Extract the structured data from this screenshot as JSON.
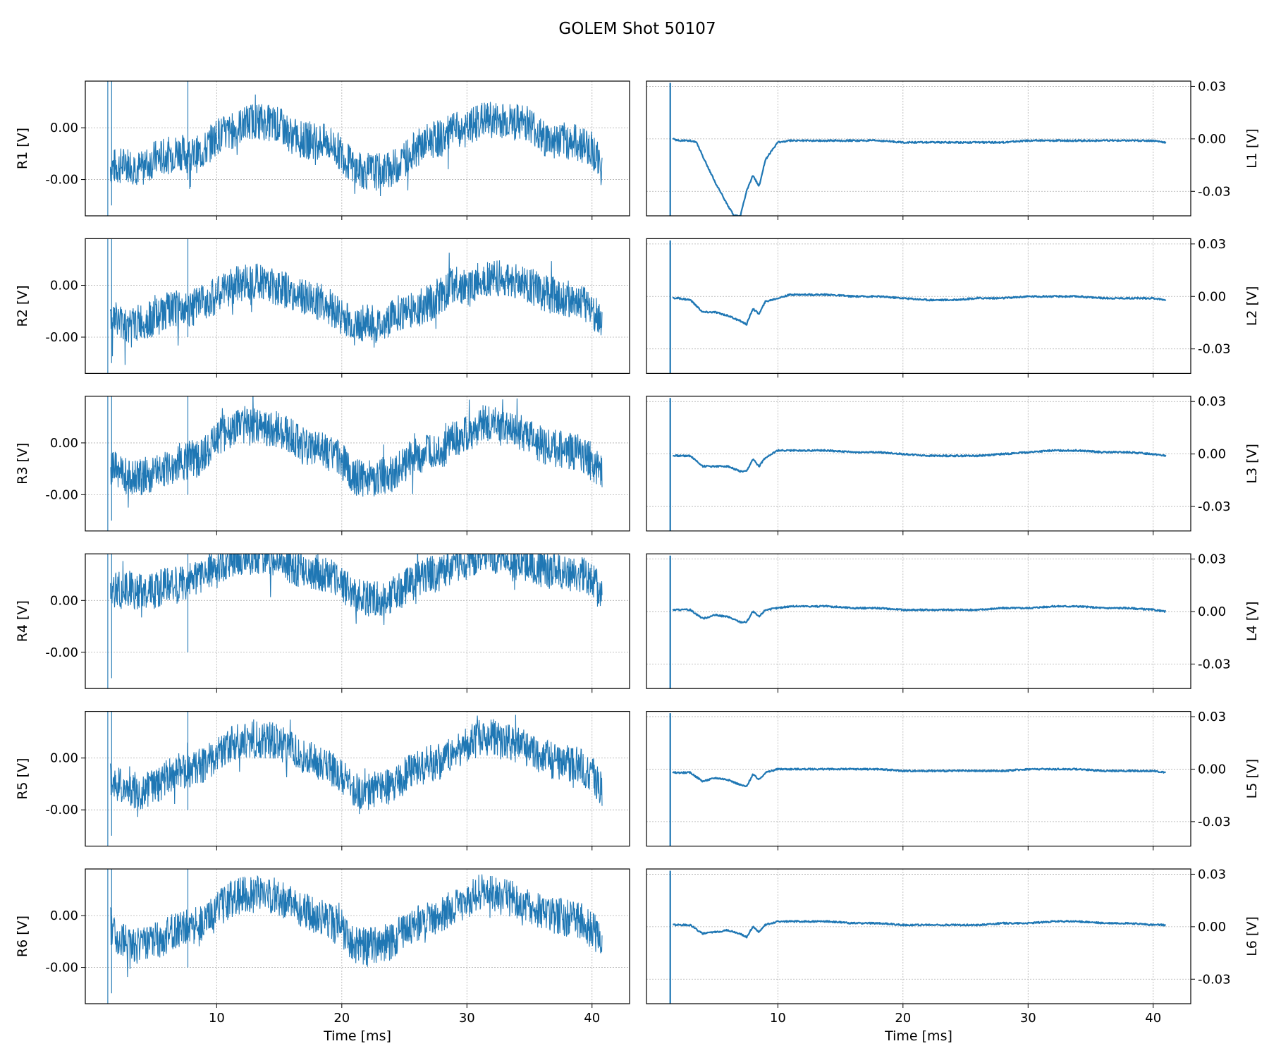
{
  "figure": {
    "title": "GOLEM Shot 50107",
    "line_color": "#1f77b4",
    "grid_color": "#b0b0b0"
  },
  "chart_data": {
    "type": "line",
    "grid": true,
    "xlabel": "Time [ms]",
    "xlim": [
      -0.5,
      43
    ],
    "x_ticks": [
      10,
      20,
      30,
      40
    ],
    "left_column": {
      "ylim": [
        -0.0034,
        0.0018
      ],
      "y_ticks": [
        0.0,
        -0.002
      ],
      "y_tick_labels": [
        "0.00",
        "-0.00"
      ],
      "series": [
        {
          "label": "R1 [V]",
          "x": [
            1.5,
            2,
            3,
            4,
            5,
            6,
            7,
            8,
            9,
            10,
            11,
            12,
            13,
            14,
            15,
            16,
            17,
            18,
            19,
            20,
            21,
            22,
            23,
            24,
            25,
            26,
            27,
            28,
            29,
            30,
            31,
            32,
            33,
            34,
            35,
            36,
            37,
            38,
            39,
            40,
            40.8
          ],
          "y": [
            -0.0015,
            -0.0015,
            -0.0014,
            -0.0016,
            -0.0012,
            -0.0011,
            -0.0009,
            -0.0011,
            -0.0009,
            -0.0003,
            -0.0002,
            0.0001,
            0.0003,
            0.0002,
            0.0001,
            -0.0003,
            -0.0005,
            -0.0005,
            -0.0006,
            -0.001,
            -0.0016,
            -0.0017,
            -0.0017,
            -0.0016,
            -0.0012,
            -0.0008,
            -0.0005,
            -0.0004,
            -0.0001,
            -0.0001,
            0.0003,
            0.0003,
            0.0003,
            0.0002,
            0.0002,
            -0.0004,
            -0.0005,
            -0.0005,
            -0.0006,
            -0.0008,
            -0.0016
          ]
        },
        {
          "label": "R2 [V]",
          "x": [
            1.5,
            2,
            3,
            4,
            5,
            6,
            7,
            8,
            9,
            10,
            11,
            12,
            13,
            14,
            15,
            16,
            17,
            18,
            19,
            20,
            21,
            22,
            23,
            24,
            25,
            26,
            27,
            28,
            29,
            30,
            31,
            32,
            33,
            34,
            35,
            36,
            37,
            38,
            39,
            40,
            40.8
          ],
          "y": [
            -0.0013,
            -0.0013,
            -0.0016,
            -0.0014,
            -0.0013,
            -0.001,
            -0.0009,
            -0.0009,
            -0.0006,
            -0.0004,
            -0.0001,
            0.0001,
            0.0002,
            0.0001,
            -0.0001,
            -0.0003,
            -0.0005,
            -0.0006,
            -0.0008,
            -0.0012,
            -0.0016,
            -0.0014,
            -0.0016,
            -0.0012,
            -0.001,
            -0.0009,
            -0.0007,
            -0.0004,
            0.0001,
            -0.0002,
            0.0002,
            0.0003,
            0.0002,
            0.0001,
            0.0,
            -0.0003,
            -0.0004,
            -0.0005,
            -0.0006,
            -0.0009,
            -0.0015
          ]
        },
        {
          "label": "R3 [V]",
          "x": [
            1.5,
            2,
            3,
            4,
            5,
            6,
            7,
            8,
            9,
            10,
            11,
            12,
            13,
            14,
            15,
            16,
            17,
            18,
            19,
            20,
            21,
            22,
            23,
            24,
            25,
            26,
            27,
            28,
            29,
            30,
            31,
            32,
            33,
            34,
            35,
            36,
            37,
            38,
            39,
            40,
            40.8
          ],
          "y": [
            -0.0009,
            -0.0011,
            -0.0013,
            -0.0013,
            -0.0012,
            -0.001,
            -0.0007,
            -0.0006,
            -0.0005,
            0.0002,
            0.0005,
            0.0006,
            0.0006,
            0.0006,
            0.0005,
            0.0002,
            -0.0001,
            -0.0002,
            -0.0004,
            -0.0007,
            -0.0013,
            -0.0014,
            -0.0013,
            -0.0012,
            -0.0008,
            -0.0005,
            -0.0004,
            -0.0003,
            0.0002,
            0.0003,
            0.0007,
            0.0008,
            0.0005,
            0.0004,
            0.0003,
            -0.0001,
            -0.0002,
            -0.0003,
            -0.0004,
            -0.0006,
            -0.0012
          ]
        },
        {
          "label": "R4 [V]",
          "x": [
            1.5,
            2,
            3,
            4,
            5,
            6,
            7,
            8,
            9,
            10,
            11,
            12,
            13,
            14,
            15,
            16,
            17,
            18,
            19,
            20,
            21,
            22,
            23,
            24,
            25,
            26,
            27,
            28,
            29,
            30,
            31,
            32,
            33,
            34,
            35,
            36,
            37,
            38,
            39,
            40,
            40.8
          ],
          "y": [
            0.0003,
            0.0004,
            0.0004,
            0.0003,
            0.0004,
            0.0006,
            0.0006,
            0.0008,
            0.0011,
            0.0013,
            0.0016,
            0.0017,
            0.0017,
            0.0017,
            0.0016,
            0.0013,
            0.0012,
            0.0011,
            0.001,
            0.0006,
            0.0002,
            0.0001,
            0.0001,
            0.0002,
            0.0005,
            0.0008,
            0.001,
            0.001,
            0.0014,
            0.0016,
            0.0017,
            0.0018,
            0.0016,
            0.0015,
            0.0014,
            0.0012,
            0.0011,
            0.0011,
            0.001,
            0.0008,
            0.0002
          ]
        },
        {
          "label": "R5 [V]",
          "x": [
            1.5,
            2,
            3,
            4,
            5,
            6,
            7,
            8,
            9,
            10,
            11,
            12,
            13,
            14,
            15,
            16,
            17,
            18,
            19,
            20,
            21,
            22,
            23,
            24,
            25,
            26,
            27,
            28,
            29,
            30,
            31,
            32,
            33,
            34,
            35,
            36,
            37,
            38,
            39,
            40,
            40.8
          ],
          "y": [
            -0.0008,
            -0.001,
            -0.0012,
            -0.0013,
            -0.0011,
            -0.0008,
            -0.0005,
            -0.0004,
            -0.0003,
            0.0002,
            0.0005,
            0.0007,
            0.0007,
            0.0007,
            0.0006,
            0.0003,
            0.0001,
            -0.0001,
            -0.0003,
            -0.0007,
            -0.0012,
            -0.0013,
            -0.0012,
            -0.0011,
            -0.0007,
            -0.0004,
            -0.0002,
            -0.0001,
            0.0003,
            0.0005,
            0.0008,
            0.0008,
            0.0006,
            0.0005,
            0.0003,
            0.0,
            -0.0001,
            -0.0002,
            -0.0003,
            -0.0006,
            -0.0012
          ]
        },
        {
          "label": "R6 [V]",
          "x": [
            1.5,
            2,
            3,
            4,
            5,
            6,
            7,
            8,
            9,
            10,
            11,
            12,
            13,
            14,
            15,
            16,
            17,
            18,
            19,
            20,
            21,
            22,
            23,
            24,
            25,
            26,
            27,
            28,
            29,
            30,
            31,
            32,
            33,
            34,
            35,
            36,
            37,
            38,
            39,
            40,
            40.8
          ],
          "y": [
            -0.0004,
            -0.0008,
            -0.0011,
            -0.0012,
            -0.001,
            -0.0008,
            -0.0005,
            -0.0004,
            -0.0003,
            0.0002,
            0.0006,
            0.0008,
            0.0008,
            0.0008,
            0.0007,
            0.0004,
            0.0002,
            0.0,
            -0.0002,
            -0.0006,
            -0.0011,
            -0.0012,
            -0.0011,
            -0.001,
            -0.0006,
            -0.0003,
            -0.0001,
            0.0,
            0.0004,
            0.0006,
            0.0009,
            0.0009,
            0.0007,
            0.0006,
            0.0004,
            0.0001,
            0.0,
            -0.0001,
            -0.0002,
            -0.0005,
            -0.0011
          ]
        }
      ]
    },
    "right_column": {
      "ylim": [
        -0.044,
        0.033
      ],
      "y_ticks": [
        0.03,
        0.0,
        -0.03
      ],
      "y_tick_labels": [
        "0.03",
        "0.00",
        "-0.03"
      ],
      "series": [
        {
          "label": "L1 [V]",
          "x": [
            1.6,
            2,
            3,
            3.5,
            4,
            5,
            6,
            6.5,
            7,
            7.5,
            8,
            8.5,
            9,
            10,
            11,
            12,
            14,
            16,
            18,
            20,
            22,
            24,
            26,
            28,
            30,
            32,
            34,
            36,
            38,
            40,
            41
          ],
          "y": [
            0.0,
            -0.001,
            -0.001,
            -0.002,
            -0.01,
            -0.025,
            -0.038,
            -0.044,
            -0.044,
            -0.03,
            -0.021,
            -0.027,
            -0.012,
            -0.002,
            -0.001,
            -0.001,
            -0.001,
            -0.001,
            -0.001,
            -0.002,
            -0.002,
            -0.002,
            -0.002,
            -0.002,
            -0.001,
            -0.001,
            -0.001,
            -0.001,
            -0.001,
            -0.001,
            -0.002
          ]
        },
        {
          "label": "L2 [V]",
          "x": [
            1.6,
            2,
            3,
            4,
            5,
            6,
            7,
            7.5,
            8,
            8.5,
            9,
            10,
            11,
            12,
            14,
            16,
            18,
            20,
            22,
            24,
            26,
            28,
            30,
            32,
            34,
            36,
            38,
            40,
            41
          ],
          "y": [
            -0.001,
            -0.001,
            -0.002,
            -0.009,
            -0.009,
            -0.011,
            -0.014,
            -0.016,
            -0.007,
            -0.01,
            -0.003,
            -0.001,
            0.001,
            0.001,
            0.001,
            0.0,
            0.0,
            -0.001,
            -0.002,
            -0.002,
            -0.001,
            -0.001,
            0.0,
            0.0,
            0.0,
            -0.001,
            -0.001,
            -0.001,
            -0.002
          ]
        },
        {
          "label": "L3 [V]",
          "x": [
            1.6,
            2,
            3,
            4,
            5,
            6,
            7,
            7.5,
            8,
            8.5,
            9,
            10,
            11,
            12,
            14,
            16,
            18,
            20,
            22,
            24,
            26,
            28,
            30,
            32,
            34,
            36,
            38,
            40,
            41
          ],
          "y": [
            -0.001,
            -0.001,
            -0.001,
            -0.007,
            -0.007,
            -0.007,
            -0.01,
            -0.01,
            -0.003,
            -0.007,
            -0.002,
            0.002,
            0.002,
            0.002,
            0.002,
            0.001,
            0.001,
            0.0,
            -0.001,
            -0.001,
            -0.001,
            0.0,
            0.001,
            0.002,
            0.002,
            0.001,
            0.001,
            0.0,
            -0.001
          ]
        },
        {
          "label": "L4 [V]",
          "x": [
            1.6,
            2,
            3,
            4,
            5,
            6,
            7,
            7.5,
            8,
            8.5,
            9,
            10,
            11,
            12,
            14,
            16,
            18,
            20,
            22,
            24,
            26,
            28,
            30,
            32,
            34,
            36,
            38,
            40,
            41
          ],
          "y": [
            0.001,
            0.001,
            0.001,
            -0.004,
            -0.002,
            -0.003,
            -0.006,
            -0.006,
            0.0,
            -0.003,
            0.001,
            0.002,
            0.003,
            0.003,
            0.003,
            0.002,
            0.002,
            0.001,
            0.001,
            0.001,
            0.001,
            0.002,
            0.002,
            0.003,
            0.003,
            0.002,
            0.002,
            0.001,
            0.0
          ]
        },
        {
          "label": "L5 [V]",
          "x": [
            1.6,
            2,
            3,
            4,
            5,
            6,
            7,
            7.5,
            8,
            8.5,
            9,
            10,
            11,
            12,
            14,
            16,
            18,
            20,
            22,
            24,
            26,
            28,
            30,
            32,
            34,
            36,
            38,
            40,
            41
          ],
          "y": [
            -0.002,
            -0.002,
            -0.002,
            -0.007,
            -0.005,
            -0.006,
            -0.009,
            -0.01,
            -0.003,
            -0.006,
            -0.002,
            0.0,
            0.0,
            0.0,
            0.0,
            0.0,
            0.0,
            -0.001,
            -0.001,
            -0.001,
            -0.001,
            -0.001,
            0.0,
            0.0,
            0.0,
            -0.001,
            -0.001,
            -0.001,
            -0.002
          ]
        },
        {
          "label": "L6 [V]",
          "x": [
            1.6,
            2,
            3,
            4,
            5,
            6,
            7,
            7.5,
            8,
            8.5,
            9,
            10,
            11,
            12,
            14,
            16,
            18,
            20,
            22,
            24,
            26,
            28,
            30,
            32,
            34,
            36,
            38,
            40,
            41
          ],
          "y": [
            0.001,
            0.001,
            0.001,
            -0.004,
            -0.003,
            -0.002,
            -0.004,
            -0.006,
            0.0,
            -0.003,
            0.001,
            0.003,
            0.003,
            0.003,
            0.003,
            0.002,
            0.002,
            0.001,
            0.001,
            0.001,
            0.001,
            0.002,
            0.002,
            0.003,
            0.003,
            0.002,
            0.002,
            0.001,
            0.001
          ]
        }
      ]
    }
  }
}
